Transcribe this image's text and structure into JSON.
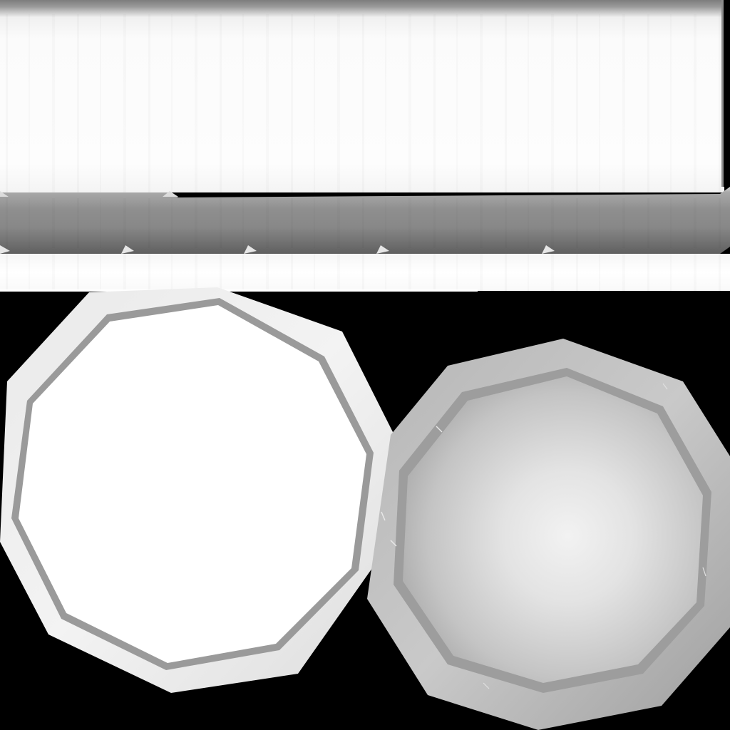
{
  "texture": {
    "background_color": "#000000",
    "top_panel_color": "#ffffff",
    "mid_band_color": "#8a8a8a",
    "left_disc_color": "#ffffff",
    "right_disc_center_color": "#f2f2f2",
    "right_disc_edge_color": "#a9a9a9"
  }
}
